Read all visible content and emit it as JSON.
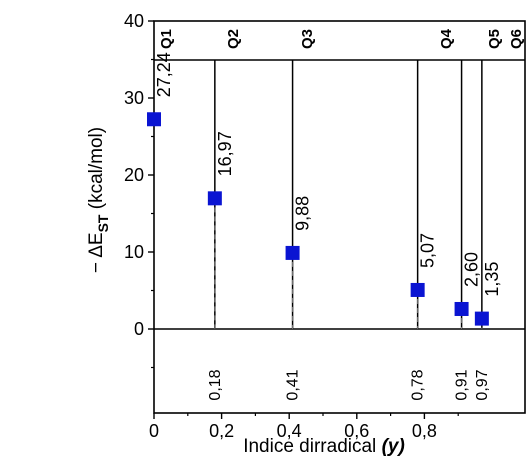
{
  "chart_data": {
    "type": "scatter",
    "xlabel_main": "Indice dirradical",
    "xlabel_symbol": "(y)",
    "ylabel_prefix": "− ΔE",
    "ylabel_sub": "ST",
    "ylabel_suffix": " (kcal/mol)",
    "xlim": [
      0,
      0.97
    ],
    "ylim": [
      -5,
      40
    ],
    "x_ticks": [
      "0",
      "0,2",
      "0,4",
      "0,6",
      "0,8"
    ],
    "x_tick_values": [
      0,
      0.2,
      0.4,
      0.6,
      0.8
    ],
    "y_ticks": [
      "0",
      "10",
      "20",
      "30",
      "40"
    ],
    "y_tick_values": [
      0,
      10,
      20,
      30,
      40
    ],
    "marker_color": "#0a14d2",
    "points": [
      {
        "q": "Q1",
        "x": 0.0,
        "y": 27.24,
        "label": "27,24",
        "x_label": ""
      },
      {
        "q": "Q2",
        "x": 0.18,
        "y": 16.97,
        "label": "16,97",
        "x_label": "0,18"
      },
      {
        "q": "Q3",
        "x": 0.41,
        "y": 9.88,
        "label": "9,88",
        "x_label": "0,41"
      },
      {
        "q": "Q4",
        "x": 0.78,
        "y": 5.07,
        "label": "5,07",
        "x_label": "0,78"
      },
      {
        "q": "Q5",
        "x": 0.91,
        "y": 2.6,
        "label": "2,60",
        "x_label": "0,91"
      },
      {
        "q": "Q6",
        "x": 0.97,
        "y": 1.35,
        "label": "1,35",
        "x_label": "0,97"
      }
    ]
  }
}
